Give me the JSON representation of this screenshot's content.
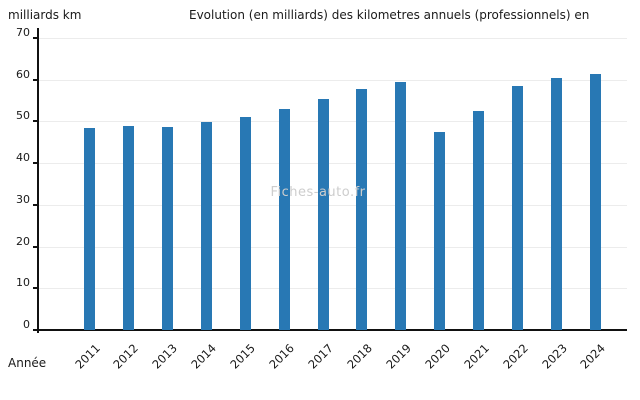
{
  "header": {
    "y_axis_unit": "milliards km",
    "title": "Evolution (en milliards) des kilometres annuels (professionnels) en"
  },
  "x_axis_label": "Année",
  "watermark": "Fiches-auto.fr",
  "chart_data": {
    "type": "bar",
    "title": "Evolution (en milliards) des kilometres annuels (professionnels) en",
    "xlabel": "Année",
    "ylabel": "milliards km",
    "categories": [
      "2011",
      "2012",
      "2013",
      "2014",
      "2015",
      "2016",
      "2017",
      "2018",
      "2019",
      "2020",
      "2021",
      "2022",
      "2023",
      "2024"
    ],
    "values": [
      48.5,
      48.8,
      48.7,
      49.8,
      51.0,
      53.0,
      55.3,
      57.7,
      59.5,
      47.5,
      52.6,
      58.5,
      60.3,
      61.3
    ],
    "ylim": [
      0,
      70
    ],
    "ytick_step": 10,
    "grid": true,
    "legend": "none",
    "bar_color": "#2878b4",
    "gridline_color": "#ececec",
    "axis_color": "#111111"
  }
}
